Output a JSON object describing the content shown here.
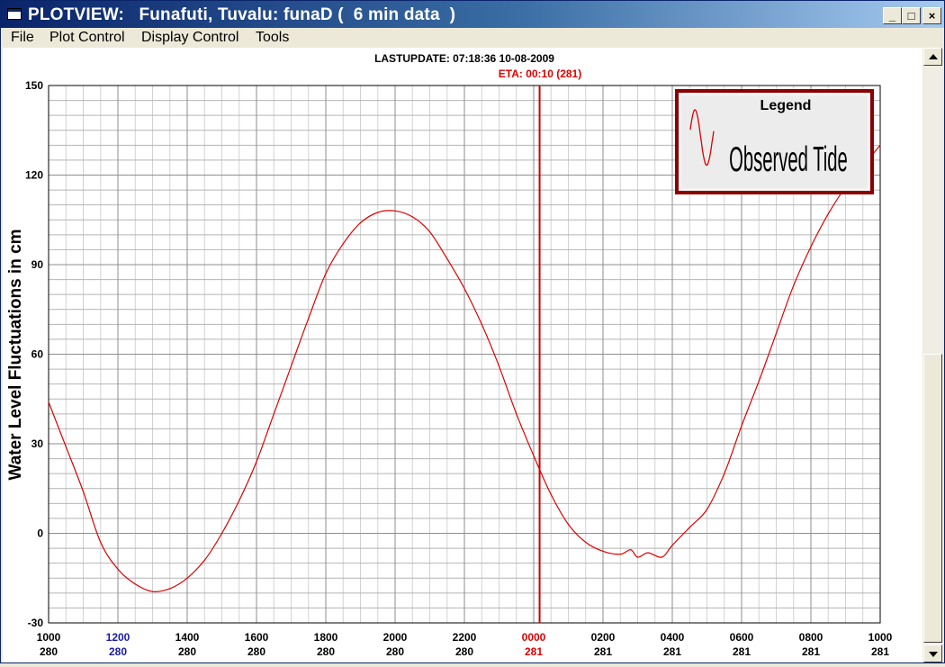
{
  "window": {
    "title": "PLOTVIEW:   Funafuti, Tuvalu: funaD (  6 min data  )",
    "minimize_label": "_",
    "maximize_label": "□",
    "close_label": "×"
  },
  "menu": {
    "items": [
      "File",
      "Plot Control",
      "Display Control",
      "Tools"
    ]
  },
  "header": {
    "last_update": "LASTUPDATE: 07:18:36  10-08-2009",
    "eta": "ETA: 00:10 (281)"
  },
  "colors": {
    "series": "#dd0000",
    "eta_line": "#cc0000",
    "highlight_blue": "#1a1aaa",
    "highlight_red": "#dd0000",
    "grid": "#b4b4b4",
    "legend_border": "#8b0000"
  },
  "legend": {
    "title": "Legend",
    "entry": "Observed Tide"
  },
  "chart_data": {
    "type": "line",
    "title": "",
    "xlabel": "",
    "ylabel": "Water Level Fluctuations in cm",
    "ylim": [
      -30,
      150
    ],
    "yticks": [
      -30,
      0,
      30,
      60,
      90,
      120,
      150
    ],
    "xlim": [
      0,
      24
    ],
    "xticks": [
      {
        "time": "1000",
        "day": "280",
        "highlight": ""
      },
      {
        "time": "1200",
        "day": "280",
        "highlight": "blue"
      },
      {
        "time": "1400",
        "day": "280",
        "highlight": ""
      },
      {
        "time": "1600",
        "day": "280",
        "highlight": ""
      },
      {
        "time": "1800",
        "day": "280",
        "highlight": ""
      },
      {
        "time": "2000",
        "day": "280",
        "highlight": ""
      },
      {
        "time": "2200",
        "day": "280",
        "highlight": ""
      },
      {
        "time": "0000",
        "day": "281",
        "highlight": "red"
      },
      {
        "time": "0200",
        "day": "281",
        "highlight": ""
      },
      {
        "time": "0400",
        "day": "281",
        "highlight": ""
      },
      {
        "time": "0600",
        "day": "281",
        "highlight": ""
      },
      {
        "time": "0800",
        "day": "281",
        "highlight": ""
      },
      {
        "time": "1000",
        "day": "281",
        "highlight": ""
      }
    ],
    "eta_x": 14.17,
    "series": [
      {
        "name": "Observed Tide",
        "points": [
          [
            0,
            44
          ],
          [
            0.5,
            29
          ],
          [
            1.0,
            14
          ],
          [
            1.5,
            -3
          ],
          [
            2.0,
            -12
          ],
          [
            2.5,
            -17
          ],
          [
            3.0,
            -19.5
          ],
          [
            3.5,
            -18.5
          ],
          [
            4.0,
            -15
          ],
          [
            4.5,
            -9
          ],
          [
            5.0,
            0
          ],
          [
            5.5,
            11
          ],
          [
            6.0,
            24
          ],
          [
            6.5,
            40
          ],
          [
            7.0,
            56
          ],
          [
            7.5,
            72
          ],
          [
            8.0,
            87
          ],
          [
            8.5,
            97
          ],
          [
            9.0,
            104
          ],
          [
            9.5,
            107.5
          ],
          [
            10.0,
            108
          ],
          [
            10.5,
            106
          ],
          [
            11.0,
            101
          ],
          [
            11.5,
            92
          ],
          [
            12.0,
            82
          ],
          [
            12.5,
            70
          ],
          [
            13.0,
            56
          ],
          [
            13.5,
            40
          ],
          [
            14.0,
            26
          ],
          [
            14.5,
            13
          ],
          [
            15.0,
            3
          ],
          [
            15.5,
            -3
          ],
          [
            16.0,
            -6
          ],
          [
            16.5,
            -7
          ],
          [
            16.8,
            -5.5
          ],
          [
            17.0,
            -8
          ],
          [
            17.3,
            -6.5
          ],
          [
            17.7,
            -8
          ],
          [
            18.0,
            -4
          ],
          [
            18.5,
            2
          ],
          [
            19.0,
            8
          ],
          [
            19.5,
            20
          ],
          [
            20.0,
            36
          ],
          [
            20.5,
            51
          ],
          [
            21.0,
            67
          ],
          [
            21.5,
            83
          ],
          [
            22.0,
            96
          ],
          [
            22.5,
            107
          ],
          [
            23.0,
            116
          ],
          [
            23.5,
            123
          ],
          [
            24.0,
            130
          ]
        ]
      }
    ]
  }
}
